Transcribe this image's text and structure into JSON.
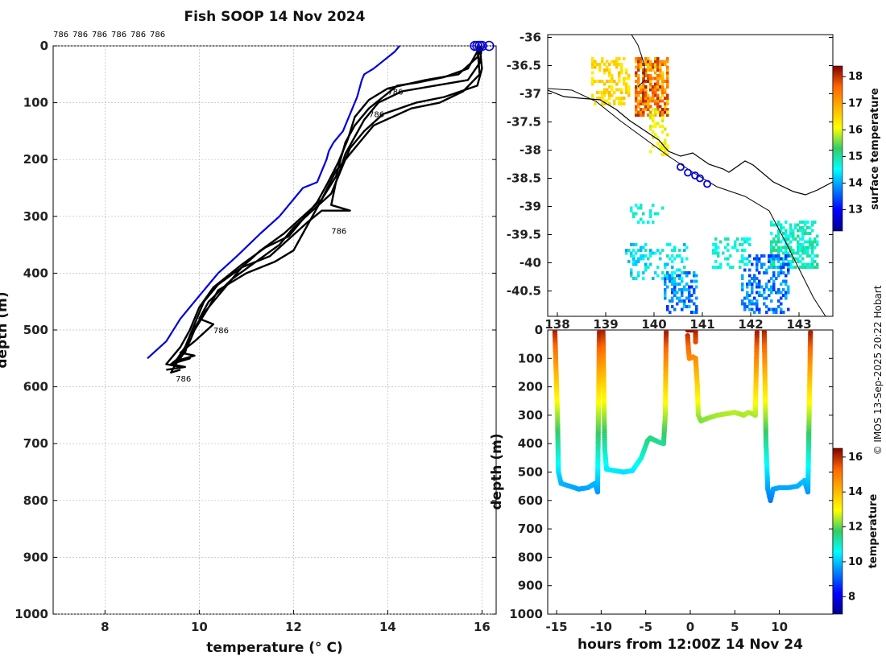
{
  "chart_data": [
    {
      "id": "profiles",
      "type": "line",
      "title": "Fish SOOP 14 Nov 2024",
      "xlabel": "temperature (° C)",
      "ylabel": "depth (m)",
      "xlim": [
        6.9,
        16.3
      ],
      "ylim": [
        0,
        1000
      ],
      "y_reversed": true,
      "xticks": [
        "8",
        "10",
        "12",
        "14",
        "16"
      ],
      "yticks": [
        "0",
        "100",
        "200",
        "300",
        "400",
        "500",
        "600",
        "700",
        "800",
        "900",
        "1000"
      ],
      "top_labels": [
        "786",
        "786",
        "786",
        "786",
        "786",
        "786"
      ],
      "profile_label": "786",
      "series": [
        {
          "name": "climatology",
          "color": "#0000dd",
          "points": [
            [
              14.25,
              0
            ],
            [
              14.15,
              10
            ],
            [
              13.7,
              40
            ],
            [
              13.5,
              50
            ],
            [
              13.45,
              60
            ],
            [
              13.35,
              90
            ],
            [
              13.2,
              120
            ],
            [
              13.05,
              150
            ],
            [
              12.85,
              170
            ],
            [
              12.75,
              185
            ],
            [
              12.7,
              200
            ],
            [
              12.5,
              240
            ],
            [
              12.2,
              250
            ],
            [
              11.7,
              300
            ],
            [
              11.3,
              330
            ],
            [
              10.8,
              370
            ],
            [
              10.4,
              400
            ],
            [
              9.9,
              450
            ],
            [
              9.6,
              480
            ],
            [
              9.3,
              520
            ],
            [
              8.9,
              550
            ]
          ]
        },
        {
          "name": "profile",
          "color": "#000000",
          "points": [
            [
              15.9,
              0
            ],
            [
              15.9,
              10
            ],
            [
              15.7,
              40
            ],
            [
              15.2,
              55
            ],
            [
              14.6,
              65
            ],
            [
              14.2,
              70
            ],
            [
              13.9,
              90
            ],
            [
              13.6,
              110
            ],
            [
              13.3,
              140
            ],
            [
              13.1,
              170
            ],
            [
              13.0,
              200
            ],
            [
              12.9,
              230
            ],
            [
              12.6,
              270
            ],
            [
              12.2,
              330
            ],
            [
              12.0,
              360
            ],
            [
              11.6,
              380
            ],
            [
              11.0,
              400
            ],
            [
              10.4,
              430
            ],
            [
              10.2,
              460
            ],
            [
              9.9,
              500
            ],
            [
              9.8,
              520
            ],
            [
              9.6,
              550
            ],
            [
              9.5,
              560
            ],
            [
              9.4,
              575
            ],
            [
              9.6,
              570
            ]
          ]
        },
        {
          "name": "profile",
          "color": "#000000",
          "points": [
            [
              16.0,
              0
            ],
            [
              15.95,
              30
            ],
            [
              15.7,
              60
            ],
            [
              15.0,
              70
            ],
            [
              14.3,
              80
            ],
            [
              13.8,
              100
            ],
            [
              13.5,
              130
            ],
            [
              13.3,
              160
            ],
            [
              13.1,
              190
            ],
            [
              12.9,
              240
            ],
            [
              12.8,
              280
            ],
            [
              13.2,
              290
            ],
            [
              12.6,
              290
            ],
            [
              12.3,
              310
            ],
            [
              11.9,
              340
            ],
            [
              11.5,
              370
            ],
            [
              10.9,
              390
            ],
            [
              10.5,
              430
            ],
            [
              10.1,
              470
            ],
            [
              9.8,
              510
            ],
            [
              9.7,
              540
            ],
            [
              9.4,
              560
            ],
            [
              9.7,
              565
            ],
            [
              9.3,
              570
            ]
          ]
        },
        {
          "name": "profile",
          "color": "#000000",
          "points": [
            [
              15.95,
              0
            ],
            [
              16.0,
              40
            ],
            [
              15.9,
              70
            ],
            [
              15.2,
              90
            ],
            [
              14.6,
              100
            ],
            [
              13.9,
              120
            ],
            [
              13.5,
              150
            ],
            [
              13.2,
              180
            ],
            [
              13.05,
              210
            ],
            [
              12.8,
              260
            ],
            [
              12.4,
              290
            ],
            [
              12.0,
              320
            ],
            [
              11.7,
              350
            ],
            [
              11.2,
              380
            ],
            [
              10.7,
              410
            ],
            [
              10.2,
              450
            ],
            [
              10.0,
              480
            ],
            [
              10.3,
              490
            ],
            [
              9.9,
              520
            ],
            [
              9.6,
              540
            ],
            [
              9.9,
              545
            ],
            [
              9.5,
              555
            ]
          ]
        },
        {
          "name": "profile",
          "color": "#000000",
          "points": [
            [
              15.9,
              0
            ],
            [
              15.95,
              50
            ],
            [
              15.6,
              80
            ],
            [
              15.1,
              100
            ],
            [
              14.5,
              110
            ],
            [
              13.7,
              140
            ],
            [
              13.4,
              170
            ],
            [
              13.1,
              200
            ],
            [
              12.9,
              220
            ],
            [
              12.6,
              270
            ],
            [
              12.2,
              300
            ],
            [
              11.8,
              330
            ],
            [
              11.3,
              360
            ],
            [
              10.9,
              390
            ],
            [
              10.4,
              420
            ],
            [
              10.1,
              450
            ],
            [
              9.9,
              490
            ],
            [
              9.7,
              530
            ],
            [
              9.5,
              555
            ],
            [
              9.8,
              550
            ],
            [
              9.4,
              560
            ]
          ]
        },
        {
          "name": "profile",
          "color": "#000000",
          "points": [
            [
              16.0,
              0
            ],
            [
              15.9,
              20
            ],
            [
              15.5,
              50
            ],
            [
              14.8,
              60
            ],
            [
              14.0,
              75
            ],
            [
              13.6,
              95
            ],
            [
              13.3,
              125
            ],
            [
              13.15,
              165
            ],
            [
              12.95,
              205
            ],
            [
              12.7,
              245
            ],
            [
              12.5,
              275
            ],
            [
              12.2,
              305
            ],
            [
              11.9,
              335
            ],
            [
              11.4,
              355
            ],
            [
              10.9,
              385
            ],
            [
              10.3,
              425
            ],
            [
              10.0,
              460
            ],
            [
              9.8,
              500
            ],
            [
              9.6,
              530
            ],
            [
              9.3,
              560
            ],
            [
              9.6,
              565
            ]
          ]
        }
      ],
      "start_markers": [
        15.85,
        15.9,
        15.95,
        16.0,
        16.15
      ]
    },
    {
      "id": "map",
      "type": "heatmap",
      "title": "",
      "xticks": [
        "138",
        "139",
        "140",
        "141",
        "142",
        "143"
      ],
      "xlim": [
        137.8,
        143.7
      ],
      "yticks": [
        "-36",
        "-36.5",
        "-37",
        "-37.5",
        "-38",
        "-38.5",
        "-39",
        "-39.5",
        "-40",
        "-40.5"
      ],
      "ylim": [
        -40.95,
        -35.95
      ],
      "colorbar_label": "surface temperature",
      "colorbar_ticks": [
        "13",
        "14",
        "15",
        "16",
        "17",
        "18"
      ],
      "colorbar_range": [
        12.2,
        18.4
      ],
      "track": [
        [
          140.55,
          -38.3
        ],
        [
          140.7,
          -38.4
        ],
        [
          140.85,
          -38.45
        ],
        [
          140.95,
          -38.5
        ],
        [
          141.1,
          -38.6
        ]
      ]
    },
    {
      "id": "timeseries",
      "type": "scatter",
      "xlabel": "hours from 12:00Z 14 Nov 24",
      "ylabel": "depth (m)",
      "xlim": [
        -16,
        16
      ],
      "ylim": [
        0,
        1000
      ],
      "y_reversed": true,
      "xticks": [
        "-15",
        "-10",
        "-5",
        "0",
        "5",
        "10"
      ],
      "yticks": [
        "0",
        "100",
        "200",
        "300",
        "400",
        "500",
        "600",
        "700",
        "800",
        "900",
        "1000"
      ],
      "colorbar_label": "temperature",
      "colorbar_ticks": [
        "8",
        "10",
        "12",
        "14",
        "16"
      ],
      "colorbar_range": [
        7,
        16.5
      ],
      "segments": [
        [
          [
            -15.2,
            0
          ],
          [
            -15.1,
            100
          ],
          [
            -14.9,
            300
          ],
          [
            -14.8,
            500
          ],
          [
            -14.5,
            540
          ],
          [
            -13.5,
            550
          ],
          [
            -12.5,
            560
          ],
          [
            -11.5,
            555
          ],
          [
            -10.7,
            540
          ],
          [
            -10.4,
            570
          ],
          [
            -10.2,
            0
          ]
        ],
        [
          [
            -9.8,
            0
          ],
          [
            -9.7,
            200
          ],
          [
            -9.6,
            420
          ],
          [
            -9.4,
            490
          ],
          [
            -8.5,
            495
          ],
          [
            -7.5,
            500
          ],
          [
            -6.5,
            495
          ],
          [
            -5.5,
            450
          ],
          [
            -4.8,
            390
          ],
          [
            -4.5,
            380
          ],
          [
            -3.5,
            395
          ],
          [
            -3.0,
            400
          ],
          [
            -2.8,
            300
          ],
          [
            -2.7,
            0
          ]
        ],
        [
          [
            -0.3,
            0
          ],
          [
            0.6,
            0
          ],
          [
            0.6,
            50
          ]
        ],
        [
          [
            -0.3,
            20
          ],
          [
            -0.2,
            70
          ],
          [
            -0.1,
            100
          ],
          [
            0.3,
            95
          ],
          [
            0.6,
            100
          ],
          [
            0.8,
            200
          ],
          [
            0.9,
            300
          ],
          [
            1.2,
            320
          ],
          [
            2,
            310
          ],
          [
            3,
            300
          ],
          [
            4,
            295
          ],
          [
            5,
            290
          ],
          [
            6,
            300
          ],
          [
            6.5,
            290
          ],
          [
            7,
            295
          ],
          [
            7.3,
            300
          ],
          [
            7.5,
            0
          ]
        ],
        [
          [
            8.3,
            0
          ],
          [
            8.4,
            200
          ],
          [
            8.5,
            400
          ],
          [
            8.7,
            560
          ],
          [
            9.0,
            600
          ],
          [
            9.3,
            560
          ],
          [
            10,
            555
          ],
          [
            11,
            555
          ],
          [
            12,
            550
          ],
          [
            12.8,
            530
          ],
          [
            13.2,
            570
          ],
          [
            13.5,
            0
          ]
        ]
      ]
    }
  ],
  "credit": "© IMOS 13-Sep-2025 20:22 Hobart"
}
